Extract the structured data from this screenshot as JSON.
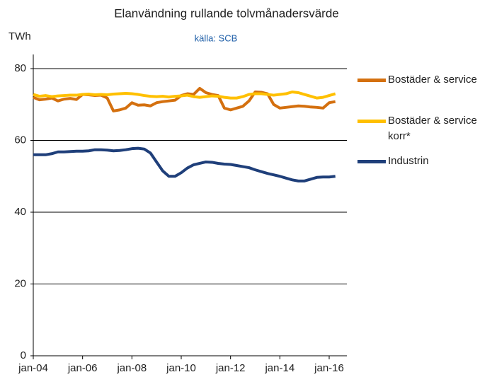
{
  "chart_data": {
    "type": "line",
    "title": "Elanvändning rullande tolvmånadersvärde",
    "subtitle": "källa: SCB",
    "y_label": "TWh",
    "categories": [
      "jan-04",
      null,
      null,
      null,
      null,
      null,
      null,
      null,
      "jan-06",
      null,
      null,
      null,
      null,
      null,
      null,
      null,
      "jan-08",
      null,
      null,
      null,
      null,
      null,
      null,
      null,
      "jan-10",
      null,
      null,
      null,
      null,
      null,
      null,
      null,
      "jan-12",
      null,
      null,
      null,
      null,
      null,
      null,
      null,
      "jan-14",
      null,
      null,
      null,
      null,
      null,
      null,
      null,
      "jan-16",
      null
    ],
    "series": [
      {
        "name": "Bostäder & service",
        "color": "#d4700f",
        "values": [
          72,
          71.3,
          71.5,
          71.8,
          71,
          71.5,
          71.7,
          71.4,
          72.8,
          72.7,
          72.5,
          72.6,
          71.8,
          68.2,
          68.5,
          69,
          70.5,
          69.8,
          69.9,
          69.6,
          70.5,
          70.8,
          71,
          71.2,
          72.5,
          73,
          72.8,
          74.5,
          73.3,
          72.8,
          72.5,
          69,
          68.5,
          69,
          69.5,
          71,
          73.5,
          73.4,
          73,
          70,
          69,
          69.2,
          69.4,
          69.6,
          69.5,
          69.3,
          69.2,
          69,
          70.5,
          70.8
        ]
      },
      {
        "name": "Bostäder & service korr*",
        "color": "#ffc000",
        "values": [
          72.8,
          72.3,
          72.5,
          72.2,
          72.4,
          72.5,
          72.6,
          72.6,
          72.8,
          72.9,
          72.7,
          72.8,
          72.7,
          72.9,
          73,
          73.1,
          73,
          72.8,
          72.5,
          72.3,
          72.2,
          72.3,
          72.1,
          72.3,
          72.4,
          72.6,
          72.2,
          72,
          72.2,
          72.4,
          72.3,
          72,
          71.8,
          71.8,
          72.2,
          72.8,
          73,
          73,
          72.8,
          72.6,
          72.8,
          73,
          73.5,
          73.3,
          72.8,
          72.3,
          71.8,
          72,
          72.5,
          73
        ]
      },
      {
        "name": "Industrin",
        "color": "#1f3f7a",
        "values": [
          56,
          56,
          56,
          56.3,
          56.8,
          56.8,
          56.9,
          57,
          57,
          57.1,
          57.4,
          57.4,
          57.3,
          57.1,
          57.2,
          57.4,
          57.7,
          57.8,
          57.6,
          56.5,
          54,
          51.5,
          50,
          50,
          51,
          52.3,
          53.2,
          53.6,
          54,
          53.9,
          53.6,
          53.4,
          53.3,
          53,
          52.7,
          52.4,
          51.8,
          51.3,
          50.8,
          50.4,
          50,
          49.5,
          49,
          48.7,
          48.7,
          49.2,
          49.7,
          49.8,
          49.8,
          50
        ]
      }
    ],
    "ylim": [
      0,
      80
    ],
    "yticks": [
      0,
      20,
      40,
      60,
      80
    ],
    "grid": true,
    "legend": "right"
  }
}
